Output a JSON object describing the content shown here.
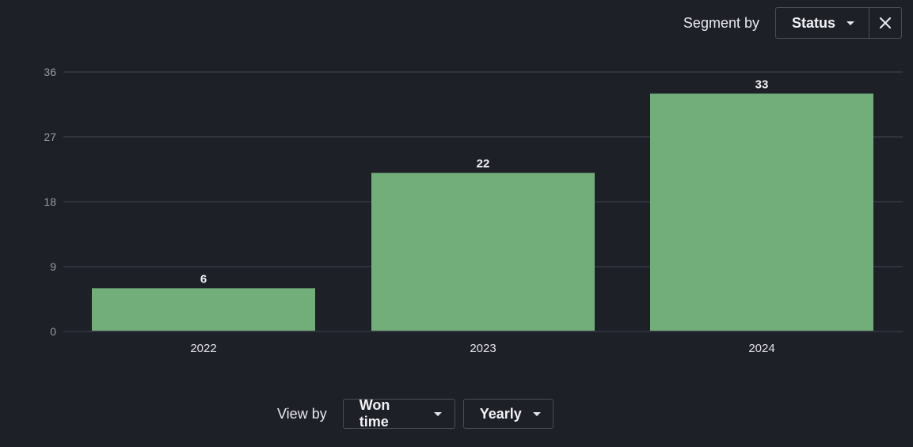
{
  "segment": {
    "label": "Segment by",
    "selected": "Status",
    "close_icon": "close-icon"
  },
  "view": {
    "label": "View by",
    "time_field": "Won time",
    "period": "Yearly"
  },
  "colors": {
    "background": "#1e2028",
    "bar": "#72ae7a",
    "grid": "#3a3d47",
    "tick_text": "#9a9ca6",
    "label_text": "#f1f1f5"
  },
  "chart_data": {
    "type": "bar",
    "categories": [
      "2022",
      "2023",
      "2024"
    ],
    "values": [
      6,
      22,
      33
    ],
    "yticks": [
      0,
      9,
      18,
      27,
      36
    ],
    "ylim": [
      0,
      36
    ],
    "grid": true,
    "data_labels": [
      "6",
      "22",
      "33"
    ]
  }
}
